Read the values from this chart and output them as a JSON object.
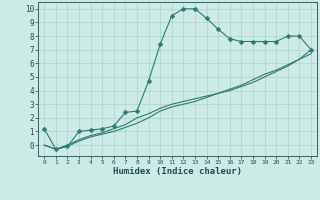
{
  "xlabel": "Humidex (Indice chaleur)",
  "ylabel": "",
  "background_color": "#ceeae6",
  "grid_color": "#aad4ce",
  "line_color": "#2a7d6e",
  "text_color": "#1a5050",
  "xlim": [
    -0.5,
    23.5
  ],
  "ylim": [
    -0.8,
    10.5
  ],
  "xticks": [
    0,
    1,
    2,
    3,
    4,
    5,
    6,
    7,
    8,
    9,
    10,
    11,
    12,
    13,
    14,
    15,
    16,
    17,
    18,
    19,
    20,
    21,
    22,
    23
  ],
  "yticks": [
    0,
    1,
    2,
    3,
    4,
    5,
    6,
    7,
    8,
    9,
    10
  ],
  "series1_x": [
    0,
    1,
    2,
    3,
    4,
    5,
    6,
    7,
    8,
    9,
    10,
    11,
    12,
    13,
    14,
    15,
    16,
    17,
    18,
    19,
    20,
    21,
    22,
    23
  ],
  "series1_y": [
    1.2,
    -0.3,
    -0.1,
    1.0,
    1.1,
    1.2,
    1.4,
    2.4,
    2.5,
    4.7,
    7.4,
    9.5,
    10.0,
    10.0,
    9.3,
    8.5,
    7.8,
    7.6,
    7.6,
    7.6,
    7.6,
    8.0,
    8.0,
    7.0
  ],
  "series2_x": [
    0,
    1,
    2,
    3,
    4,
    5,
    6,
    7,
    8,
    9,
    10,
    11,
    12,
    13,
    14,
    15,
    16,
    17,
    18,
    19,
    20,
    21,
    22,
    23
  ],
  "series2_y": [
    0.0,
    -0.3,
    -0.1,
    0.3,
    0.6,
    0.8,
    1.0,
    1.3,
    1.6,
    2.0,
    2.5,
    2.8,
    3.0,
    3.2,
    3.5,
    3.8,
    4.1,
    4.4,
    4.8,
    5.2,
    5.5,
    5.9,
    6.3,
    6.7
  ],
  "series3_x": [
    0,
    1,
    2,
    3,
    4,
    5,
    6,
    7,
    8,
    9,
    10,
    11,
    12,
    13,
    14,
    15,
    16,
    17,
    18,
    19,
    20,
    21,
    22,
    23
  ],
  "series3_y": [
    0.0,
    -0.3,
    0.0,
    0.4,
    0.7,
    0.9,
    1.2,
    1.5,
    2.0,
    2.3,
    2.7,
    3.0,
    3.2,
    3.4,
    3.6,
    3.8,
    4.0,
    4.3,
    4.6,
    5.0,
    5.4,
    5.8,
    6.3,
    7.0
  ]
}
